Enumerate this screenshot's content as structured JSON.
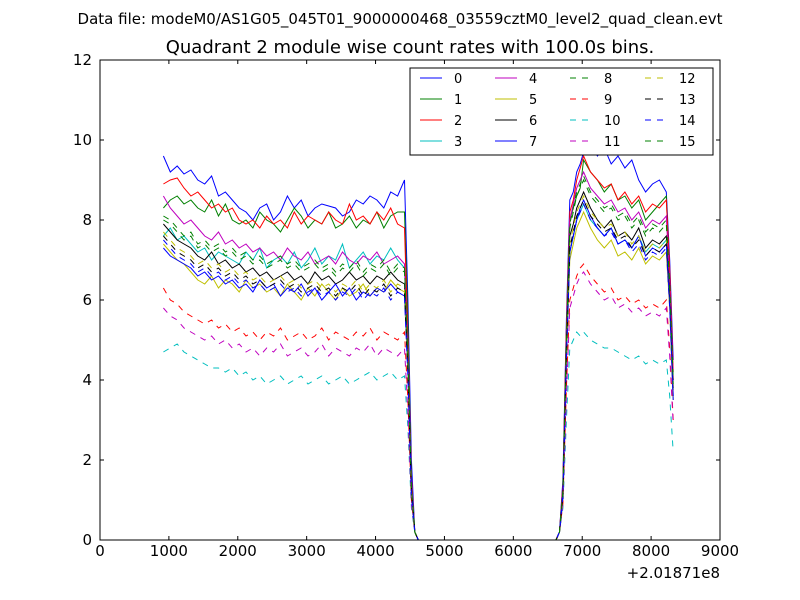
{
  "suptitle": "Data file: modeM0/AS1G05_045T01_9000000468_03559cztM0_level2_quad_clean.evt",
  "chart_data": {
    "type": "line",
    "title": "Quadrant 2 module wise count rates with 100.0s bins.",
    "xlabel": "",
    "ylabel": "",
    "x_offset_label": "+2.01871e8",
    "xlim": [
      0,
      9000
    ],
    "ylim": [
      0,
      12
    ],
    "xticks": [
      "0",
      "1000",
      "2000",
      "3000",
      "4000",
      "5000",
      "6000",
      "7000",
      "8000",
      "9000"
    ],
    "yticks": [
      "0",
      "2",
      "4",
      "6",
      "8",
      "10",
      "12"
    ],
    "legend_position": "top-right",
    "segments": [
      {
        "x_start": 920,
        "x_step": 100,
        "count": 36
      },
      {
        "x_start": 4520,
        "x_step": 0,
        "count": 0,
        "note_values": "transition"
      }
    ],
    "x": [
      920,
      1020,
      1120,
      1220,
      1320,
      1420,
      1520,
      1620,
      1720,
      1820,
      1920,
      2020,
      2120,
      2220,
      2320,
      2420,
      2520,
      2620,
      2720,
      2820,
      2920,
      3020,
      3120,
      3220,
      3320,
      3420,
      3520,
      3620,
      3720,
      3820,
      3920,
      4020,
      4120,
      4220,
      4320,
      4420,
      4470,
      4520,
      4570,
      4620,
      6620,
      6670,
      6720,
      6770,
      6820,
      6870,
      6920,
      6970,
      7020,
      7120,
      7220,
      7320,
      7420,
      7520,
      7620,
      7720,
      7820,
      7920,
      8020,
      8120,
      8220,
      8270,
      8320
    ],
    "series": [
      {
        "name": "0",
        "color": "#0000ff",
        "dash": "solid",
        "values": [
          9.6,
          9.2,
          9.35,
          9.15,
          9.25,
          9.0,
          8.9,
          9.1,
          8.6,
          8.7,
          8.5,
          8.3,
          8.2,
          8.0,
          8.3,
          8.4,
          8.0,
          8.2,
          8.6,
          8.3,
          8.5,
          8.1,
          8.3,
          8.4,
          8.35,
          8.3,
          8.1,
          8.2,
          8.5,
          8.4,
          8.6,
          8.5,
          8.3,
          8.7,
          8.6,
          9.0,
          6.0,
          2.0,
          0.2,
          0.0,
          0.0,
          0.2,
          1.5,
          5.5,
          8.5,
          8.7,
          9.2,
          9.4,
          9.7,
          9.9,
          9.6,
          9.8,
          9.4,
          9.6,
          9.3,
          9.5,
          9.0,
          8.7,
          8.9,
          9.0,
          8.7,
          7.0,
          4.5
        ]
      },
      {
        "name": "1",
        "color": "#008000",
        "dash": "solid",
        "values": [
          8.3,
          8.5,
          8.6,
          8.4,
          8.5,
          8.3,
          8.2,
          8.5,
          8.1,
          8.4,
          8.0,
          7.9,
          8.0,
          7.8,
          8.2,
          8.0,
          7.9,
          7.7,
          8.0,
          8.3,
          8.1,
          7.8,
          8.0,
          7.9,
          8.2,
          7.8,
          7.9,
          8.1,
          7.8,
          8.0,
          7.9,
          8.2,
          7.8,
          8.1,
          8.2,
          8.2,
          5.5,
          1.5,
          0.2,
          0.0,
          0.0,
          0.2,
          1.3,
          5.2,
          8.0,
          8.3,
          8.6,
          8.8,
          9.5,
          9.2,
          9.0,
          8.7,
          8.9,
          8.5,
          8.6,
          8.3,
          8.5,
          8.0,
          8.2,
          8.4,
          8.6,
          6.5,
          4.0
        ]
      },
      {
        "name": "2",
        "color": "#ff0000",
        "dash": "solid",
        "values": [
          8.9,
          9.0,
          9.05,
          8.8,
          8.6,
          8.7,
          8.5,
          8.3,
          8.4,
          8.2,
          8.3,
          8.0,
          7.9,
          8.0,
          7.8,
          8.1,
          7.9,
          8.0,
          7.8,
          8.2,
          7.9,
          8.1,
          8.0,
          7.9,
          8.2,
          8.0,
          7.9,
          8.4,
          8.0,
          8.1,
          7.9,
          8.2,
          8.0,
          8.3,
          7.9,
          7.8,
          5.0,
          1.6,
          0.2,
          0.0,
          0.0,
          0.2,
          1.4,
          5.3,
          8.2,
          8.5,
          9.0,
          9.3,
          9.6,
          9.2,
          9.0,
          8.8,
          8.9,
          8.5,
          8.7,
          8.4,
          8.6,
          8.2,
          8.4,
          8.3,
          8.5,
          6.8,
          4.2
        ]
      },
      {
        "name": "3",
        "color": "#00bfbf",
        "dash": "solid",
        "values": [
          7.6,
          7.8,
          7.5,
          7.6,
          7.4,
          7.2,
          7.3,
          7.0,
          7.2,
          7.1,
          7.0,
          6.9,
          7.2,
          7.0,
          7.3,
          6.8,
          7.0,
          7.1,
          6.9,
          7.2,
          6.8,
          7.0,
          7.3,
          6.9,
          7.1,
          7.0,
          7.4,
          6.8,
          7.0,
          7.2,
          6.9,
          7.1,
          7.0,
          7.3,
          7.0,
          6.8,
          4.6,
          1.4,
          0.2,
          0.0,
          0.0,
          0.2,
          1.2,
          4.6,
          7.2,
          7.6,
          8.0,
          8.2,
          8.4,
          8.0,
          7.8,
          7.6,
          7.8,
          7.4,
          7.5,
          7.3,
          7.6,
          7.2,
          7.4,
          7.3,
          7.5,
          6.0,
          3.6
        ]
      },
      {
        "name": "4",
        "color": "#bf00bf",
        "dash": "solid",
        "values": [
          8.6,
          8.3,
          8.1,
          7.9,
          8.0,
          7.8,
          7.6,
          7.5,
          7.7,
          7.4,
          7.5,
          7.3,
          7.4,
          7.2,
          7.3,
          7.1,
          7.2,
          7.0,
          7.3,
          7.1,
          7.0,
          7.2,
          6.9,
          7.0,
          7.1,
          6.9,
          7.2,
          7.0,
          6.9,
          7.1,
          7.0,
          7.2,
          6.9,
          7.0,
          7.1,
          6.9,
          4.7,
          1.4,
          0.2,
          0.0,
          0.0,
          0.2,
          1.3,
          5.0,
          8.0,
          8.4,
          8.8,
          9.0,
          9.2,
          8.8,
          8.6,
          8.4,
          8.5,
          8.2,
          8.3,
          8.0,
          8.2,
          7.8,
          8.0,
          7.9,
          8.1,
          6.4,
          4.0
        ]
      },
      {
        "name": "5",
        "color": "#bfbf00",
        "dash": "solid",
        "values": [
          7.4,
          7.2,
          7.0,
          6.9,
          6.7,
          6.5,
          6.4,
          6.6,
          6.3,
          6.5,
          6.4,
          6.2,
          6.5,
          6.3,
          6.4,
          6.2,
          6.3,
          6.1,
          6.4,
          6.2,
          6.0,
          6.3,
          6.1,
          6.4,
          6.2,
          6.0,
          6.3,
          6.1,
          6.2,
          6.4,
          6.1,
          6.3,
          6.2,
          6.5,
          6.3,
          6.2,
          4.3,
          1.3,
          0.2,
          0.0,
          0.0,
          0.2,
          1.1,
          4.5,
          7.0,
          7.4,
          7.8,
          8.0,
          8.2,
          7.8,
          7.5,
          7.3,
          7.5,
          7.1,
          7.2,
          7.0,
          7.3,
          6.9,
          7.1,
          7.0,
          7.2,
          5.8,
          3.5
        ]
      },
      {
        "name": "6",
        "color": "#000000",
        "dash": "solid",
        "values": [
          7.9,
          7.7,
          7.5,
          7.4,
          7.3,
          7.1,
          7.0,
          7.2,
          6.9,
          7.0,
          6.8,
          6.9,
          6.7,
          6.8,
          6.6,
          6.7,
          6.5,
          6.6,
          6.7,
          6.5,
          6.6,
          6.4,
          6.7,
          6.5,
          6.6,
          6.4,
          6.5,
          6.7,
          6.5,
          6.6,
          6.4,
          6.6,
          6.5,
          6.7,
          6.5,
          6.4,
          4.4,
          1.3,
          0.2,
          0.0,
          0.0,
          0.2,
          1.2,
          4.8,
          7.6,
          7.9,
          8.3,
          8.5,
          8.7,
          8.3,
          8.0,
          7.8,
          8.0,
          7.6,
          7.7,
          7.5,
          7.8,
          7.3,
          7.5,
          7.4,
          7.6,
          6.1,
          3.8
        ]
      },
      {
        "name": "7",
        "color": "#0000ff",
        "dash": "solid",
        "values": [
          7.3,
          7.1,
          7.0,
          6.9,
          6.8,
          6.6,
          6.7,
          6.5,
          6.6,
          6.4,
          6.5,
          6.3,
          6.4,
          6.2,
          6.5,
          6.3,
          6.4,
          6.1,
          6.3,
          6.2,
          6.4,
          6.1,
          6.3,
          6.0,
          6.2,
          6.4,
          6.1,
          6.3,
          6.0,
          6.2,
          6.1,
          6.3,
          6.2,
          6.4,
          6.2,
          6.1,
          4.2,
          1.2,
          0.2,
          0.0,
          0.0,
          0.2,
          1.1,
          4.6,
          7.2,
          7.6,
          8.0,
          8.3,
          8.5,
          8.1,
          7.8,
          7.6,
          7.8,
          7.4,
          7.5,
          7.3,
          7.6,
          7.1,
          7.3,
          7.2,
          7.4,
          5.9,
          3.6
        ]
      },
      {
        "name": "8",
        "color": "#008000",
        "dash": "dashed",
        "values": [
          8.0,
          7.9,
          7.7,
          7.5,
          7.6,
          7.3,
          7.4,
          7.2,
          7.3,
          7.1,
          7.2,
          7.0,
          7.1,
          6.9,
          7.0,
          6.8,
          6.9,
          7.0,
          6.8,
          6.9,
          6.7,
          6.8,
          6.9,
          6.7,
          6.8,
          6.6,
          6.8,
          6.7,
          6.9,
          6.6,
          6.8,
          6.7,
          6.9,
          6.6,
          6.8,
          6.7,
          4.5,
          1.3,
          0.2,
          0.0,
          0.0,
          0.2,
          1.2,
          4.9,
          7.8,
          8.2,
          8.6,
          8.8,
          9.0,
          8.6,
          8.4,
          8.2,
          8.3,
          8.0,
          8.1,
          7.8,
          8.0,
          7.6,
          7.8,
          7.7,
          7.9,
          6.3,
          3.9
        ]
      },
      {
        "name": "9",
        "color": "#ff0000",
        "dash": "dashed",
        "values": [
          6.3,
          6.0,
          5.9,
          5.7,
          5.6,
          5.5,
          5.4,
          5.5,
          5.3,
          5.4,
          5.2,
          5.3,
          5.1,
          5.2,
          5.0,
          5.2,
          5.1,
          5.3,
          5.0,
          5.1,
          5.2,
          5.0,
          5.1,
          5.3,
          5.0,
          5.2,
          5.1,
          5.0,
          5.2,
          5.1,
          5.3,
          5.0,
          5.2,
          5.1,
          5.0,
          5.2,
          3.5,
          1.0,
          0.2,
          0.0,
          0.0,
          0.2,
          0.9,
          3.8,
          6.0,
          6.3,
          6.6,
          6.8,
          6.9,
          6.6,
          6.4,
          6.2,
          6.3,
          6.0,
          6.1,
          5.9,
          6.0,
          5.8,
          5.9,
          5.8,
          6.0,
          4.8,
          3.0
        ]
      },
      {
        "name": "10",
        "color": "#00bfbf",
        "dash": "dashed",
        "values": [
          4.7,
          4.8,
          4.9,
          4.7,
          4.6,
          4.5,
          4.4,
          4.3,
          4.3,
          4.2,
          4.3,
          4.1,
          4.2,
          4.0,
          4.1,
          3.9,
          4.0,
          4.1,
          3.9,
          4.0,
          4.1,
          3.9,
          4.0,
          4.1,
          3.9,
          4.0,
          4.1,
          3.9,
          4.0,
          4.1,
          4.2,
          4.0,
          4.1,
          4.2,
          4.0,
          4.1,
          2.8,
          0.8,
          0.2,
          0.0,
          0.0,
          0.2,
          0.8,
          3.0,
          4.8,
          5.0,
          5.2,
          5.1,
          5.2,
          5.0,
          4.9,
          4.8,
          4.8,
          4.7,
          4.6,
          4.5,
          4.6,
          4.4,
          4.5,
          4.4,
          4.5,
          3.6,
          2.2
        ]
      },
      {
        "name": "11",
        "color": "#bf00bf",
        "dash": "dashed",
        "values": [
          5.8,
          5.6,
          5.5,
          5.3,
          5.2,
          5.1,
          5.0,
          5.1,
          4.9,
          5.0,
          4.8,
          4.9,
          4.7,
          4.8,
          4.6,
          4.8,
          4.7,
          4.9,
          4.6,
          4.7,
          4.8,
          4.6,
          4.7,
          4.9,
          4.6,
          4.8,
          4.7,
          4.6,
          4.8,
          4.7,
          4.9,
          4.6,
          4.8,
          4.7,
          4.6,
          4.8,
          3.2,
          0.9,
          0.2,
          0.0,
          0.0,
          0.2,
          0.9,
          3.6,
          5.8,
          6.1,
          6.4,
          6.6,
          6.7,
          6.4,
          6.2,
          6.0,
          6.1,
          5.8,
          5.9,
          5.7,
          5.8,
          5.6,
          5.7,
          5.6,
          5.8,
          4.6,
          2.9
        ]
      },
      {
        "name": "12",
        "color": "#bfbf00",
        "dash": "dashed",
        "values": [
          7.7,
          7.5,
          7.3,
          7.2,
          7.1,
          6.9,
          7.0,
          6.8,
          6.9,
          6.7,
          6.8,
          6.6,
          6.7,
          6.5,
          6.6,
          6.4,
          6.5,
          6.6,
          6.4,
          6.5,
          6.3,
          6.4,
          6.5,
          6.3,
          6.4,
          6.2,
          6.4,
          6.3,
          6.5,
          6.2,
          6.4,
          6.3,
          6.5,
          6.2,
          6.4,
          6.3,
          4.3,
          1.2,
          0.2,
          0.0,
          0.0,
          0.2,
          1.1,
          4.7,
          7.4,
          7.8,
          8.2,
          8.4,
          8.6,
          8.2,
          8.0,
          7.8,
          7.9,
          7.6,
          7.7,
          7.4,
          7.6,
          7.2,
          7.4,
          7.3,
          7.5,
          6.0,
          3.7
        ]
      },
      {
        "name": "13",
        "color": "#000000",
        "dash": "dashed",
        "values": [
          7.6,
          7.4,
          7.2,
          7.1,
          7.0,
          6.8,
          6.9,
          6.7,
          6.8,
          6.6,
          6.7,
          6.5,
          6.6,
          6.4,
          6.5,
          6.3,
          6.4,
          6.5,
          6.3,
          6.4,
          6.2,
          6.3,
          6.4,
          6.2,
          6.3,
          6.1,
          6.3,
          6.2,
          6.4,
          6.1,
          6.3,
          6.2,
          6.4,
          6.1,
          6.3,
          6.2,
          4.2,
          1.2,
          0.2,
          0.0,
          0.0,
          0.2,
          1.1,
          4.6,
          7.3,
          7.7,
          8.1,
          8.3,
          8.5,
          8.1,
          7.9,
          7.7,
          7.8,
          7.5,
          7.6,
          7.3,
          7.5,
          7.1,
          7.3,
          7.2,
          7.4,
          5.9,
          3.6
        ]
      },
      {
        "name": "14",
        "color": "#0000ff",
        "dash": "dashed",
        "values": [
          7.5,
          7.3,
          7.1,
          7.0,
          6.9,
          6.7,
          6.8,
          6.6,
          6.7,
          6.5,
          6.6,
          6.4,
          6.5,
          6.3,
          6.4,
          6.2,
          6.3,
          6.4,
          6.2,
          6.3,
          6.1,
          6.2,
          6.3,
          6.1,
          6.2,
          6.0,
          6.2,
          6.1,
          6.3,
          6.0,
          6.2,
          6.1,
          6.3,
          6.0,
          6.2,
          6.1,
          4.1,
          1.1,
          0.2,
          0.0,
          0.0,
          0.2,
          1.1,
          4.5,
          7.2,
          7.6,
          8.0,
          8.2,
          8.4,
          8.0,
          7.8,
          7.6,
          7.7,
          7.4,
          7.5,
          7.2,
          7.4,
          7.0,
          7.2,
          7.1,
          7.3,
          5.8,
          3.5
        ]
      },
      {
        "name": "15",
        "color": "#008000",
        "dash": "dashed",
        "values": [
          8.1,
          8.0,
          7.8,
          7.6,
          7.7,
          7.4,
          7.5,
          7.3,
          7.4,
          7.2,
          7.3,
          7.1,
          7.2,
          7.0,
          7.1,
          6.9,
          7.0,
          7.1,
          6.9,
          7.0,
          6.8,
          6.9,
          7.0,
          6.8,
          6.9,
          6.7,
          6.9,
          6.8,
          7.0,
          6.7,
          6.9,
          6.8,
          7.0,
          6.7,
          6.9,
          6.8,
          4.6,
          1.3,
          0.2,
          0.0,
          0.0,
          0.2,
          1.2,
          5.0,
          7.9,
          8.3,
          8.7,
          8.9,
          9.1,
          8.7,
          8.5,
          8.3,
          8.4,
          8.1,
          8.2,
          7.9,
          8.1,
          7.7,
          7.9,
          7.8,
          8.0,
          6.4,
          4.0
        ]
      }
    ]
  }
}
